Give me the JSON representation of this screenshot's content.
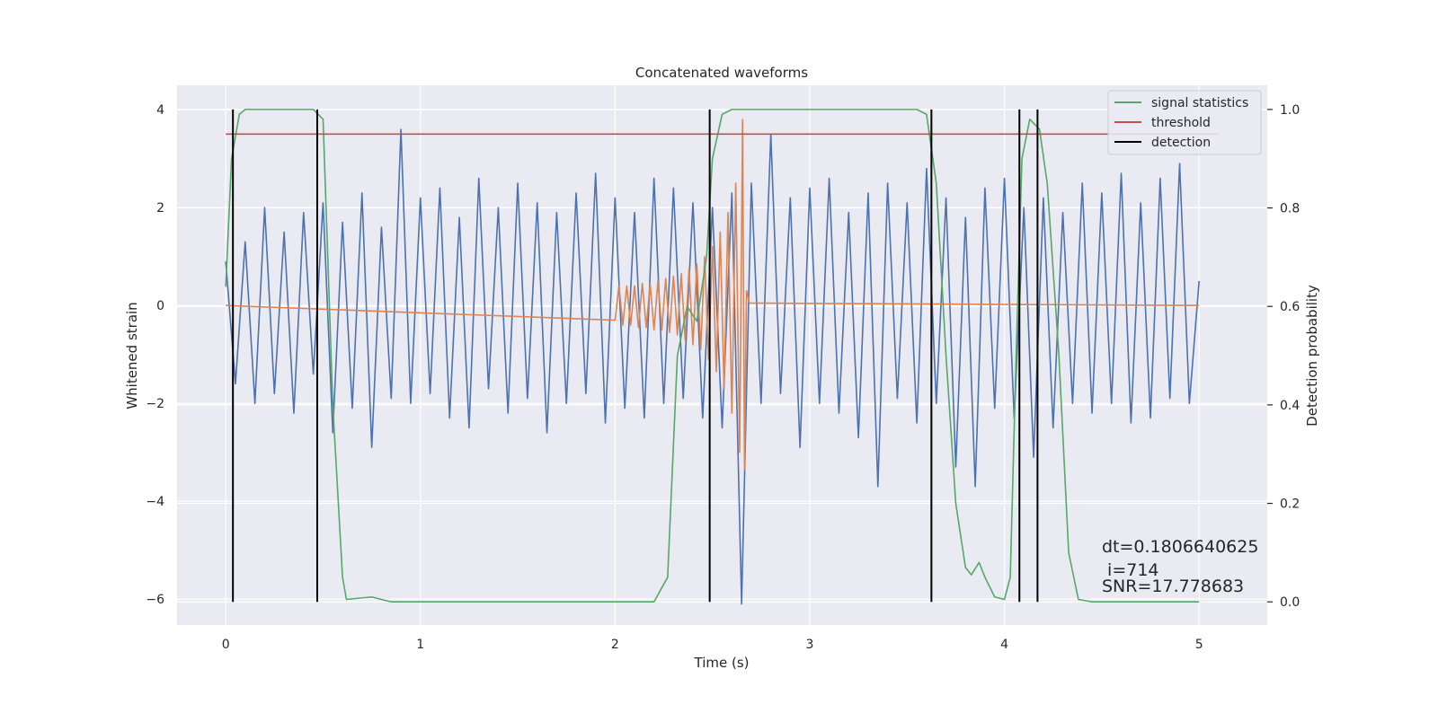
{
  "chart_data": {
    "type": "line",
    "title": "Concatenated waveforms",
    "xlabel": "Time (s)",
    "ylabel": "Whitened strain",
    "y2label": "Detection probability",
    "xlim": [
      -0.25,
      5.35
    ],
    "ylim": [
      -6.53,
      4.5
    ],
    "y2lim": [
      -0.047,
      1.049
    ],
    "xticks": [
      0,
      1,
      2,
      3,
      4,
      5
    ],
    "yticks": [
      {
        "value": -6,
        "label": "−6"
      },
      {
        "value": -4,
        "label": "−4"
      },
      {
        "value": -2,
        "label": "−2"
      },
      0,
      2,
      4
    ],
    "y2ticks": [
      {
        "value": 0,
        "label": "0.0"
      },
      0.2,
      0.4,
      0.6,
      0.8,
      {
        "value": 1,
        "label": "1.0"
      }
    ],
    "grid": true,
    "legend": "upper right",
    "series": [
      {
        "color": "#4c72b0",
        "x": [
          0,
          0.05,
          0.1,
          0.15,
          0.2,
          0.25,
          0.3,
          0.35,
          0.4,
          0.45,
          0.5,
          0.55,
          0.6,
          0.65,
          0.7,
          0.75,
          0.8,
          0.85,
          0.9,
          0.95,
          1,
          1.05,
          1.1,
          1.15,
          1.2,
          1.25,
          1.3,
          1.35,
          1.4,
          1.45,
          1.5,
          1.55,
          1.6,
          1.65,
          1.7,
          1.75,
          1.8,
          1.85,
          1.9,
          1.95,
          2,
          2.05,
          2.1,
          2.15,
          2.2,
          2.25,
          2.3,
          2.35,
          2.4,
          2.45,
          2.5,
          2.55,
          2.6,
          2.65,
          2.7,
          2.75,
          2.8,
          2.85,
          2.9,
          2.95,
          3,
          3.05,
          3.1,
          3.15,
          3.2,
          3.25,
          3.3,
          3.35,
          3.4,
          3.45,
          3.5,
          3.55,
          3.6,
          3.65,
          3.7,
          3.75,
          3.8,
          3.85,
          3.9,
          3.95,
          4,
          4.05,
          4.1,
          4.15,
          4.2,
          4.25,
          4.3,
          4.35,
          4.4,
          4.45,
          4.5,
          4.55,
          4.6,
          4.65,
          4.7,
          4.75,
          4.8,
          4.85,
          4.9,
          4.95,
          5
        ],
        "values": [
          0.9,
          -1.6,
          1.3,
          -2.0,
          2.0,
          -1.8,
          1.5,
          -2.2,
          1.9,
          -1.4,
          2.1,
          -2.6,
          1.7,
          -2.1,
          2.3,
          -2.9,
          1.6,
          -1.9,
          3.6,
          -2.0,
          2.2,
          -1.8,
          2.4,
          -2.3,
          1.8,
          -2.5,
          2.6,
          -1.7,
          2.0,
          -2.2,
          2.5,
          -1.9,
          2.1,
          -2.6,
          1.9,
          -2.0,
          2.3,
          -1.8,
          2.7,
          -2.4,
          2.2,
          -2.1,
          1.9,
          -2.3,
          2.6,
          -2.0,
          2.4,
          -1.9,
          2.1,
          -2.3,
          2.0,
          -2.5,
          2.3,
          -6.1,
          2.5,
          -2.0,
          3.5,
          -1.8,
          2.2,
          -2.9,
          2.4,
          -2.0,
          2.6,
          -2.2,
          1.9,
          -2.7,
          2.3,
          -3.7,
          2.5,
          -1.9,
          2.1,
          -2.4,
          2.8,
          -2.0,
          2.2,
          -3.3,
          1.8,
          -3.7,
          2.4,
          -2.1,
          2.6,
          -2.3,
          2.0,
          -3.1,
          2.2,
          -2.5,
          1.9,
          -2.0,
          2.5,
          -2.2,
          2.3,
          -2.0,
          2.7,
          -2.4,
          2.1,
          -2.3,
          2.6,
          -1.9,
          2.9,
          -2.0,
          0.5
        ]
      },
      {
        "color": "#dd8452",
        "x": [
          0,
          2.0,
          2.02,
          2.04,
          2.06,
          2.08,
          2.1,
          2.12,
          2.14,
          2.16,
          2.18,
          2.2,
          2.22,
          2.24,
          2.26,
          2.28,
          2.3,
          2.32,
          2.34,
          2.36,
          2.38,
          2.4,
          2.42,
          2.44,
          2.46,
          2.48,
          2.5,
          2.52,
          2.54,
          2.56,
          2.58,
          2.6,
          2.62,
          2.64,
          2.655,
          2.665,
          2.675,
          2.69,
          5
        ],
        "values": [
          0,
          -0.3,
          0.4,
          -0.4,
          0.4,
          -0.4,
          0.4,
          -0.45,
          0.45,
          -0.45,
          0.45,
          -0.5,
          0.5,
          -0.5,
          0.55,
          -0.55,
          0.6,
          -0.6,
          0.65,
          -0.7,
          0.75,
          -0.8,
          0.85,
          -0.9,
          1.0,
          -1.1,
          1.2,
          -1.35,
          1.5,
          -1.7,
          1.9,
          -2.2,
          2.5,
          -3.0,
          3.8,
          -3.35,
          0.3,
          0.05,
          0
        ]
      },
      {
        "name": "signal statistics",
        "color": "#55a868",
        "axis": "y2",
        "x": [
          0,
          0.03,
          0.07,
          0.1,
          0.45,
          0.5,
          0.55,
          0.6,
          0.62,
          0.75,
          0.85,
          2.2,
          2.27,
          2.32,
          2.37,
          2.42,
          2.47,
          2.5,
          2.55,
          2.6,
          3.55,
          3.6,
          3.65,
          3.7,
          3.75,
          3.8,
          3.83,
          3.87,
          3.9,
          3.95,
          4.0,
          4.03,
          4.06,
          4.09,
          4.13,
          4.18,
          4.22,
          4.28,
          4.33,
          4.38,
          4.45,
          5
        ],
        "values": [
          0.64,
          0.9,
          0.99,
          1,
          1,
          0.98,
          0.4,
          0.05,
          0.005,
          0.01,
          0,
          0,
          0.05,
          0.5,
          0.6,
          0.57,
          0.7,
          0.9,
          0.99,
          1,
          1,
          0.99,
          0.85,
          0.5,
          0.2,
          0.07,
          0.055,
          0.08,
          0.05,
          0.01,
          0.005,
          0.05,
          0.5,
          0.9,
          0.98,
          0.96,
          0.85,
          0.5,
          0.1,
          0.005,
          0,
          0
        ]
      },
      {
        "name": "threshold",
        "color": "#c44e52",
        "axis": "y2",
        "x": [
          0,
          5.1
        ],
        "values": [
          0.95,
          0.95
        ]
      },
      {
        "name": "detection",
        "color": "#000000",
        "axis": "y2",
        "x": [
          0.037,
          0.47,
          2.486,
          3.625,
          4.077,
          4.17
        ],
        "ymin": 0,
        "ymax": 1
      }
    ],
    "annotation": [
      "dt=0.1806640625",
      " i=714",
      "SNR=17.778683"
    ]
  }
}
